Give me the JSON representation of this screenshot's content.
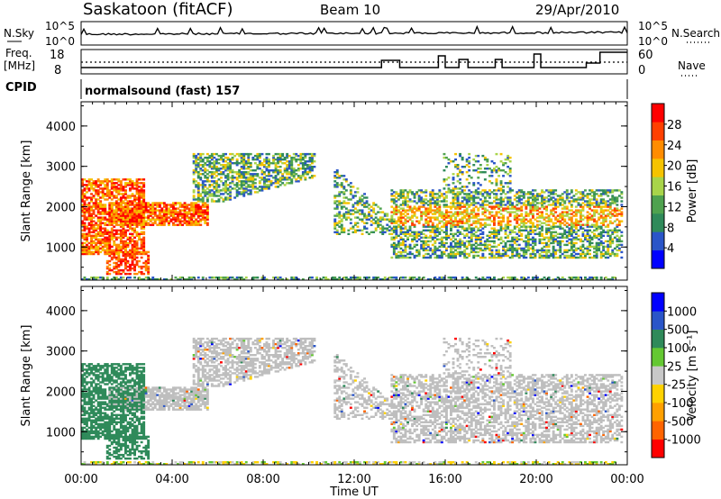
{
  "header": {
    "station": "Saskatoon (fitACF)",
    "beam": "Beam 10",
    "date": "29/Apr/2010"
  },
  "top_panels": {
    "nsky_label": "N.Sky",
    "nsky_ticks": [
      "10^5",
      "10^0"
    ],
    "nsearch_label": "N.Search",
    "nsearch_ticks": [
      "10^5",
      "10^0"
    ],
    "freq_label_line1": "Freq.",
    "freq_label_line2": "[MHz]",
    "freq_ticks": [
      "18",
      "8"
    ],
    "nave_label": "Nave",
    "nave_ticks": [
      "60",
      "0"
    ],
    "cpid_label": "CPID",
    "cpid_value": "normalsound (fast) 157"
  },
  "colors": {
    "scale_power": [
      "#0000ff",
      "#2a55c8",
      "#2f8a5a",
      "#4fa24f",
      "#a8d44a",
      "#f5c300",
      "#ff8c00",
      "#ff4000",
      "#ff0000"
    ],
    "scale_velocity": [
      "#ff0000",
      "#ff6400",
      "#ffa000",
      "#ffd200",
      "#c8c8c8",
      "#64c832",
      "#2f8a5a",
      "#2a55c8",
      "#0000ff"
    ],
    "ground_scatter": "#bebebe"
  },
  "chart_data": [
    {
      "type": "heatmap",
      "name": "power",
      "ylabel": "Slant Range [km]",
      "xlabel": "Time UT",
      "x_ticks": [
        "00:00",
        "04:00",
        "08:00",
        "12:00",
        "16:00",
        "20:00",
        "00:00"
      ],
      "y_ticks": [
        "1000",
        "2000",
        "3000",
        "4000"
      ],
      "xlim_hours": [
        0,
        24
      ],
      "ylim_km": [
        180,
        4600
      ],
      "colorbar_label": "Power [dB]",
      "colorbar_ticks": [
        "28",
        "24",
        "20",
        "16",
        "12",
        "8",
        "4"
      ],
      "colorbar_range": [
        0,
        30
      ]
    },
    {
      "type": "heatmap",
      "name": "velocity",
      "ylabel": "Slant Range [km]",
      "xlabel": "Time UT",
      "x_ticks": [
        "00:00",
        "04:00",
        "08:00",
        "12:00",
        "16:00",
        "20:00",
        "00:00"
      ],
      "y_ticks": [
        "1000",
        "2000",
        "3000",
        "4000"
      ],
      "xlim_hours": [
        0,
        24
      ],
      "ylim_km": [
        180,
        4600
      ],
      "colorbar_label": "Velocity [m s⁻¹]",
      "colorbar_ticks": [
        "1000",
        "500",
        "100",
        "25",
        "-25",
        "-100",
        "-500",
        "-1000"
      ]
    }
  ],
  "xaxis_title": "Time UT"
}
